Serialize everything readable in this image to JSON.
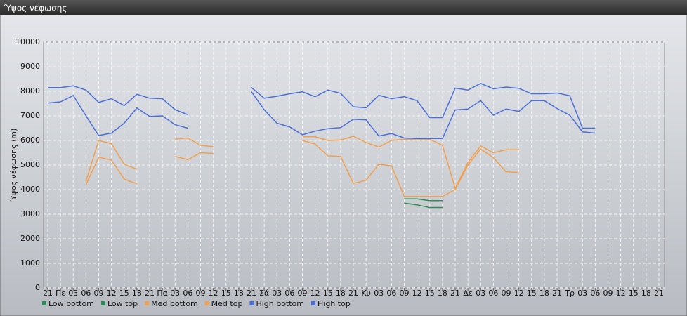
{
  "chart_data": {
    "type": "line",
    "title": "Ύψος νέφωσης",
    "y_label": "Ύψος νέφωσης (m)",
    "categories": [
      "21",
      "Πε",
      "03",
      "06",
      "09",
      "12",
      "15",
      "18",
      "21",
      "Πα",
      "03",
      "06",
      "09",
      "12",
      "15",
      "18",
      "21",
      "Σά",
      "03",
      "06",
      "09",
      "12",
      "15",
      "18",
      "21",
      "Κυ",
      "03",
      "06",
      "09",
      "12",
      "15",
      "18",
      "21",
      "Δε",
      "03",
      "06",
      "09",
      "12",
      "15",
      "18",
      "21",
      "Τρ",
      "03",
      "06",
      "09",
      "12",
      "15",
      "18",
      "21"
    ],
    "ylim": [
      0,
      10000
    ],
    "yticks": [
      0,
      1000,
      2000,
      3000,
      4000,
      5000,
      6000,
      7000,
      8000,
      9000,
      10000
    ],
    "grid": true,
    "series": [
      {
        "name": "Low bottom",
        "color": "#2e8b57",
        "values": [
          null,
          null,
          null,
          null,
          null,
          null,
          null,
          null,
          null,
          null,
          null,
          null,
          null,
          null,
          null,
          null,
          null,
          null,
          null,
          null,
          null,
          null,
          null,
          null,
          null,
          null,
          null,
          null,
          3450,
          3380,
          3270,
          3270,
          null,
          null,
          null,
          null,
          null,
          null,
          null,
          null,
          null,
          null,
          null,
          null,
          null,
          null,
          null,
          null,
          null
        ]
      },
      {
        "name": "Low top",
        "color": "#2e8b57",
        "values": [
          null,
          null,
          null,
          null,
          null,
          null,
          null,
          null,
          null,
          null,
          null,
          null,
          null,
          null,
          null,
          null,
          null,
          null,
          null,
          null,
          null,
          null,
          null,
          null,
          null,
          null,
          null,
          null,
          3620,
          3620,
          3550,
          3550,
          null,
          null,
          null,
          null,
          null,
          null,
          null,
          null,
          null,
          null,
          null,
          null,
          null,
          null,
          null,
          null,
          null
        ]
      },
      {
        "name": "Med bottom",
        "color": "#f0a050",
        "values": [
          null,
          null,
          null,
          4200,
          5320,
          5200,
          4430,
          4230,
          null,
          null,
          5350,
          5220,
          5500,
          5470,
          null,
          null,
          null,
          null,
          null,
          null,
          6000,
          5850,
          5370,
          5350,
          4250,
          4380,
          5030,
          4970,
          3720,
          3720,
          3720,
          3720,
          4000,
          5000,
          5650,
          5300,
          4720,
          4700,
          null,
          null,
          null,
          null,
          null,
          null,
          null,
          null,
          null,
          null,
          null
        ]
      },
      {
        "name": "Med top",
        "color": "#f0a050",
        "values": [
          null,
          null,
          null,
          4350,
          6000,
          5870,
          5030,
          4830,
          null,
          null,
          6050,
          6100,
          5800,
          5750,
          null,
          null,
          null,
          null,
          null,
          null,
          6150,
          6150,
          6000,
          6020,
          6170,
          5920,
          5730,
          6000,
          6050,
          6050,
          6050,
          5800,
          4050,
          5100,
          5780,
          5500,
          5620,
          5620,
          null,
          null,
          null,
          null,
          null,
          null,
          null,
          null,
          null,
          null,
          null
        ]
      },
      {
        "name": "High bottom",
        "color": "#4a6fd8",
        "values": [
          7520,
          7570,
          7830,
          7000,
          6200,
          6300,
          6700,
          7320,
          6980,
          7000,
          6640,
          6500,
          null,
          null,
          null,
          null,
          7980,
          7250,
          6700,
          6550,
          6230,
          6380,
          6480,
          6520,
          6860,
          6840,
          6180,
          6280,
          6100,
          6080,
          6080,
          6080,
          7240,
          7280,
          7620,
          7030,
          7280,
          7180,
          7620,
          7620,
          7300,
          7030,
          6350,
          6300,
          null,
          null,
          null,
          null,
          null
        ]
      },
      {
        "name": "High top",
        "color": "#4a6fd8",
        "values": [
          8150,
          8150,
          8220,
          8050,
          7550,
          7700,
          7420,
          7880,
          7720,
          7700,
          7250,
          7050,
          null,
          null,
          null,
          null,
          8150,
          7720,
          7800,
          7900,
          7980,
          7780,
          8050,
          7920,
          7370,
          7330,
          7840,
          7700,
          7780,
          7620,
          6930,
          6930,
          8130,
          8050,
          8320,
          8100,
          8170,
          8120,
          7900,
          7900,
          7930,
          7820,
          6500,
          6500,
          null,
          null,
          null,
          null,
          null
        ]
      }
    ]
  }
}
